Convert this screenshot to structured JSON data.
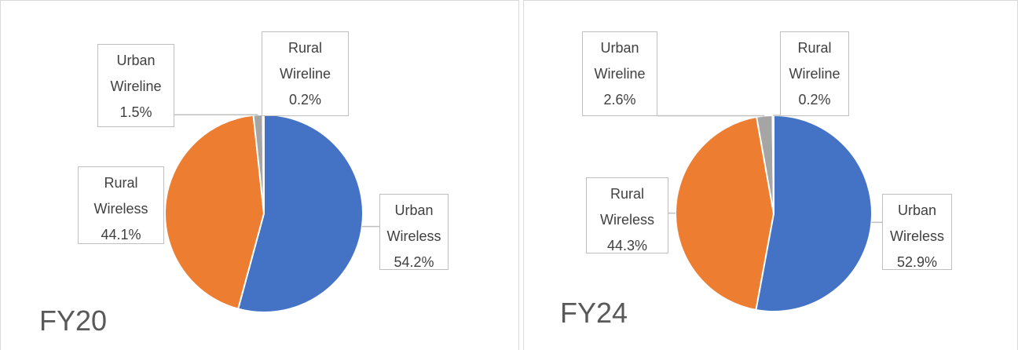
{
  "chart_data": [
    {
      "type": "pie",
      "title": "FY20",
      "categories": [
        "Urban Wireless",
        "Rural Wireless",
        "Urban Wireline",
        "Rural Wireline"
      ],
      "values": [
        54.2,
        44.1,
        1.5,
        0.2
      ],
      "value_labels": [
        "54.2%",
        "44.1%",
        "1.5%",
        "0.2%"
      ],
      "colors": [
        "#4472c4",
        "#ed7d31",
        "#a5a5a5",
        "#ffc000"
      ]
    },
    {
      "type": "pie",
      "title": "FY24",
      "categories": [
        "Urban Wireless",
        "Rural Wireless",
        "Urban Wireline",
        "Rural Wireline"
      ],
      "values": [
        52.9,
        44.3,
        2.6,
        0.2
      ],
      "value_labels": [
        "52.9%",
        "44.3%",
        "2.6%",
        "0.2%"
      ],
      "colors": [
        "#4472c4",
        "#ed7d31",
        "#a5a5a5",
        "#ffc000"
      ]
    }
  ]
}
